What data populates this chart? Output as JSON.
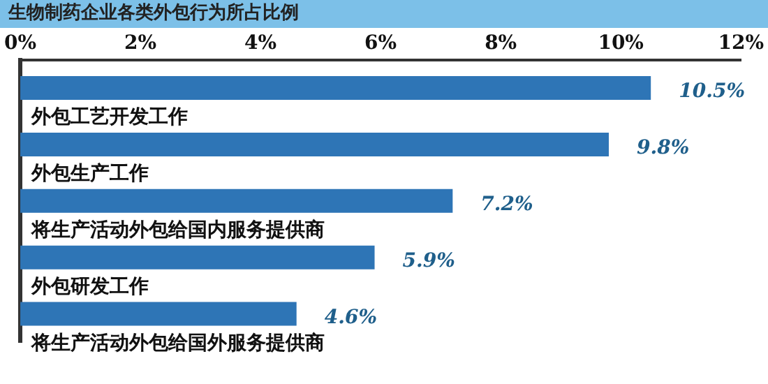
{
  "chart_data": {
    "type": "bar",
    "orientation": "horizontal",
    "title": "生物制药企业各类外包行为所占比例",
    "categories": [
      "外包工艺开发工作",
      "外包生产工作",
      "将生产活动外包给国内服务提供商",
      "外包研发工作",
      "将生产活动外包给国外服务提供商"
    ],
    "values": [
      10.5,
      9.8,
      7.2,
      5.9,
      4.6
    ],
    "value_labels": [
      "10.5%",
      "9.8%",
      "7.2%",
      "5.9%",
      "4.6%"
    ],
    "color": "#2e75b6",
    "xlim": [
      0,
      12
    ],
    "xticks": [
      {
        "value": 0,
        "label": "0%"
      },
      {
        "value": 2,
        "label": "2%"
      },
      {
        "value": 4,
        "label": "4%"
      },
      {
        "value": 6,
        "label": "6%"
      },
      {
        "value": 8,
        "label": "8%"
      },
      {
        "value": 10,
        "label": "10%"
      },
      {
        "value": 12,
        "label": "12%"
      }
    ]
  }
}
